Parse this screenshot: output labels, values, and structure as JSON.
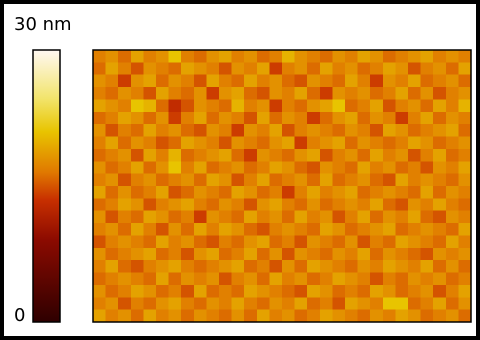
{
  "chart_data": {
    "type": "heatmap",
    "zlim": [
      0,
      30
    ],
    "zticks": [
      {
        "value": 30,
        "label": "30 nm"
      },
      0
    ],
    "colormap": [
      [
        0,
        "#2e0000"
      ],
      [
        0.3,
        "#8b0a00"
      ],
      [
        0.45,
        "#c83000"
      ],
      [
        0.55,
        "#e07800"
      ],
      [
        0.7,
        "#e8c400"
      ],
      [
        0.82,
        "#f2e46a"
      ],
      [
        1,
        "#fff8f2"
      ]
    ],
    "z": [
      [
        17,
        18,
        16,
        19,
        17,
        18,
        21,
        17,
        16,
        18,
        19,
        17,
        18,
        16,
        17,
        20,
        18,
        17,
        16,
        18,
        17,
        19,
        18,
        16,
        17,
        18,
        19,
        17,
        18,
        17
      ],
      [
        16,
        19,
        17,
        15,
        18,
        17,
        16,
        19,
        18,
        17,
        15,
        18,
        17,
        19,
        14,
        17,
        18,
        16,
        19,
        17,
        18,
        16,
        17,
        19,
        18,
        15,
        17,
        18,
        16,
        19
      ],
      [
        18,
        17,
        14,
        18,
        19,
        16,
        18,
        17,
        15,
        19,
        17,
        16,
        19,
        17,
        18,
        16,
        15,
        18,
        17,
        16,
        19,
        17,
        14,
        18,
        17,
        19,
        16,
        17,
        18,
        16
      ],
      [
        17,
        16,
        18,
        17,
        15,
        19,
        17,
        16,
        18,
        14,
        18,
        19,
        16,
        15,
        18,
        17,
        19,
        16,
        14,
        18,
        17,
        18,
        16,
        17,
        19,
        16,
        18,
        15,
        17,
        18
      ],
      [
        19,
        18,
        17,
        21,
        20,
        16,
        13,
        15,
        18,
        17,
        16,
        20,
        17,
        18,
        14,
        17,
        16,
        18,
        19,
        21,
        16,
        17,
        19,
        15,
        17,
        18,
        16,
        19,
        17,
        20
      ],
      [
        16,
        17,
        19,
        18,
        16,
        18,
        14,
        17,
        19,
        16,
        18,
        17,
        15,
        19,
        16,
        18,
        17,
        14,
        16,
        18,
        19,
        16,
        18,
        17,
        14,
        17,
        19,
        16,
        18,
        17
      ],
      [
        18,
        15,
        17,
        16,
        19,
        17,
        18,
        16,
        15,
        18,
        17,
        14,
        18,
        17,
        19,
        15,
        17,
        18,
        17,
        16,
        18,
        17,
        15,
        19,
        18,
        16,
        17,
        18,
        19,
        16
      ],
      [
        17,
        19,
        16,
        18,
        17,
        15,
        16,
        19,
        18,
        17,
        15,
        18,
        17,
        16,
        18,
        19,
        14,
        17,
        18,
        19,
        16,
        18,
        17,
        16,
        17,
        19,
        18,
        16,
        17,
        18
      ],
      [
        16,
        17,
        18,
        15,
        19,
        17,
        20,
        16,
        17,
        18,
        19,
        16,
        14,
        18,
        17,
        16,
        18,
        19,
        15,
        17,
        18,
        16,
        19,
        17,
        18,
        15,
        17,
        19,
        16,
        17
      ],
      [
        18,
        16,
        17,
        19,
        16,
        18,
        21,
        17,
        19,
        16,
        17,
        18,
        16,
        17,
        19,
        18,
        16,
        15,
        18,
        17,
        16,
        19,
        17,
        18,
        16,
        17,
        15,
        18,
        17,
        19
      ],
      [
        17,
        18,
        15,
        17,
        18,
        16,
        17,
        18,
        16,
        19,
        18,
        15,
        17,
        19,
        16,
        17,
        18,
        16,
        19,
        16,
        17,
        18,
        16,
        15,
        19,
        17,
        18,
        17,
        16,
        18
      ],
      [
        19,
        16,
        18,
        16,
        17,
        19,
        15,
        16,
        18,
        17,
        16,
        19,
        18,
        16,
        17,
        14,
        17,
        19,
        17,
        18,
        19,
        16,
        17,
        18,
        17,
        16,
        19,
        16,
        18,
        17
      ],
      [
        16,
        17,
        19,
        18,
        15,
        17,
        18,
        19,
        17,
        16,
        18,
        17,
        15,
        18,
        19,
        17,
        16,
        18,
        16,
        17,
        18,
        17,
        19,
        16,
        15,
        18,
        17,
        19,
        17,
        16
      ],
      [
        18,
        15,
        17,
        16,
        19,
        18,
        16,
        17,
        14,
        18,
        17,
        16,
        19,
        17,
        18,
        16,
        19,
        17,
        18,
        15,
        17,
        19,
        16,
        18,
        17,
        19,
        16,
        15,
        18,
        17
      ],
      [
        17,
        18,
        16,
        19,
        17,
        15,
        18,
        16,
        19,
        17,
        19,
        18,
        16,
        15,
        17,
        18,
        17,
        16,
        19,
        18,
        16,
        17,
        18,
        19,
        16,
        17,
        18,
        17,
        16,
        19
      ],
      [
        15,
        17,
        18,
        17,
        16,
        19,
        17,
        18,
        16,
        15,
        17,
        16,
        18,
        19,
        16,
        17,
        15,
        18,
        17,
        16,
        18,
        15,
        17,
        16,
        19,
        18,
        17,
        16,
        19,
        17
      ],
      [
        18,
        16,
        17,
        18,
        19,
        16,
        17,
        15,
        18,
        19,
        16,
        17,
        19,
        16,
        18,
        15,
        18,
        17,
        16,
        18,
        17,
        19,
        16,
        18,
        17,
        16,
        15,
        18,
        17,
        18
      ],
      [
        17,
        19,
        16,
        15,
        17,
        18,
        19,
        17,
        16,
        17,
        18,
        19,
        16,
        17,
        15,
        18,
        16,
        19,
        18,
        17,
        16,
        18,
        17,
        19,
        18,
        17,
        19,
        16,
        18,
        16
      ],
      [
        16,
        17,
        18,
        17,
        16,
        19,
        16,
        18,
        17,
        18,
        15,
        17,
        18,
        16,
        19,
        17,
        18,
        16,
        17,
        19,
        18,
        17,
        15,
        17,
        16,
        18,
        17,
        18,
        16,
        17
      ],
      [
        18,
        16,
        17,
        19,
        18,
        16,
        17,
        15,
        19,
        16,
        17,
        16,
        19,
        18,
        17,
        16,
        15,
        19,
        18,
        16,
        17,
        16,
        19,
        18,
        16,
        17,
        18,
        15,
        17,
        19
      ],
      [
        17,
        18,
        15,
        17,
        16,
        18,
        19,
        17,
        16,
        18,
        17,
        19,
        17,
        16,
        18,
        17,
        19,
        16,
        17,
        15,
        19,
        18,
        17,
        21,
        21,
        16,
        17,
        19,
        16,
        18
      ],
      [
        19,
        17,
        18,
        16,
        19,
        17,
        18,
        16,
        18,
        17,
        16,
        18,
        16,
        19,
        17,
        18,
        16,
        17,
        19,
        18,
        17,
        16,
        18,
        17,
        19,
        18,
        16,
        17,
        18,
        16
      ]
    ]
  }
}
